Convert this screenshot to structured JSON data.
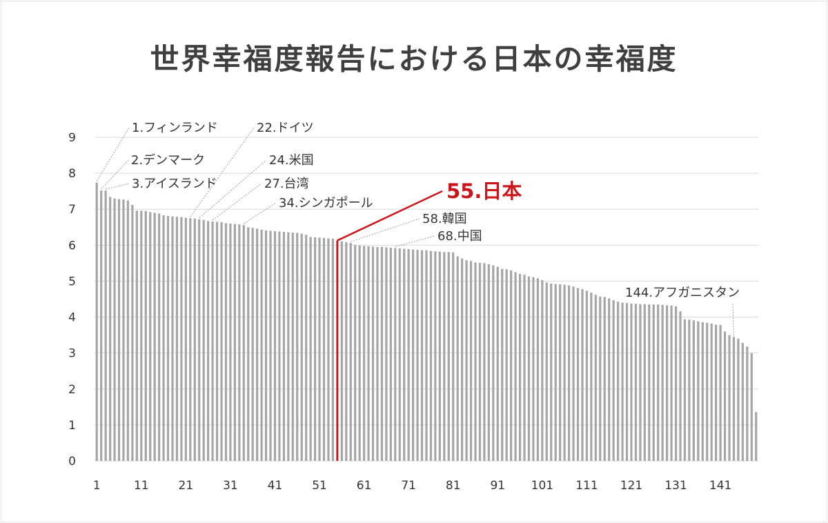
{
  "title": "世界幸福度報告における日本の幸福度",
  "chart_data": {
    "type": "bar",
    "title": "世界幸福度報告における日本の幸福度",
    "xlabel": "",
    "ylabel": "",
    "ylim": [
      0,
      9
    ],
    "yticks": [
      "0",
      "1",
      "2",
      "3",
      "4",
      "5",
      "6",
      "7",
      "8",
      "9"
    ],
    "xticks": [
      "1",
      "11",
      "21",
      "31",
      "41",
      "51",
      "61",
      "71",
      "81",
      "91",
      "101",
      "111",
      "121",
      "131",
      "141"
    ],
    "grid": true,
    "bar_color": "#a6a6a6",
    "highlight_color": "#c8161d",
    "highlight_rank": 55,
    "values": [
      7.74,
      7.52,
      7.52,
      7.34,
      7.3,
      7.28,
      7.27,
      7.24,
      7.12,
      6.96,
      6.96,
      6.95,
      6.92,
      6.9,
      6.88,
      6.83,
      6.81,
      6.8,
      6.79,
      6.78,
      6.76,
      6.75,
      6.74,
      6.72,
      6.7,
      6.67,
      6.66,
      6.65,
      6.64,
      6.61,
      6.6,
      6.59,
      6.58,
      6.56,
      6.5,
      6.48,
      6.46,
      6.43,
      6.41,
      6.4,
      6.39,
      6.38,
      6.37,
      6.36,
      6.35,
      6.34,
      6.32,
      6.29,
      6.23,
      6.22,
      6.21,
      6.2,
      6.19,
      6.18,
      6.13,
      6.11,
      6.08,
      6.06,
      6.01,
      5.99,
      5.98,
      5.97,
      5.96,
      5.95,
      5.95,
      5.94,
      5.93,
      5.92,
      5.91,
      5.9,
      5.89,
      5.88,
      5.87,
      5.86,
      5.86,
      5.84,
      5.83,
      5.82,
      5.81,
      5.81,
      5.8,
      5.69,
      5.63,
      5.58,
      5.56,
      5.52,
      5.51,
      5.5,
      5.47,
      5.44,
      5.4,
      5.34,
      5.33,
      5.3,
      5.25,
      5.2,
      5.18,
      5.13,
      5.11,
      5.08,
      5.03,
      4.96,
      4.93,
      4.92,
      4.91,
      4.9,
      4.88,
      4.85,
      4.81,
      4.78,
      4.73,
      4.68,
      4.62,
      4.57,
      4.56,
      4.52,
      4.47,
      4.43,
      4.4,
      4.39,
      4.38,
      4.37,
      4.36,
      4.36,
      4.35,
      4.35,
      4.35,
      4.34,
      4.33,
      4.32,
      4.3,
      4.16,
      3.94,
      3.93,
      3.91,
      3.88,
      3.86,
      3.84,
      3.82,
      3.79,
      3.78,
      3.6,
      3.5,
      3.45,
      3.4,
      3.28,
      3.18,
      3.0,
      1.36
    ],
    "annotations": [
      {
        "rank": 1,
        "text": "1.フィンランド"
      },
      {
        "rank": 2,
        "text": "2.デンマーク"
      },
      {
        "rank": 3,
        "text": "3.アイスランド"
      },
      {
        "rank": 22,
        "text": "22.ドイツ"
      },
      {
        "rank": 24,
        "text": "24.米国"
      },
      {
        "rank": 27,
        "text": "27.台湾"
      },
      {
        "rank": 34,
        "text": "34.シンガポール"
      },
      {
        "rank": 55,
        "text": "55.日本",
        "highlight": true
      },
      {
        "rank": 58,
        "text": "58.韓国"
      },
      {
        "rank": 68,
        "text": "68.中国"
      },
      {
        "rank": 144,
        "text": "144.アフガニスタン"
      }
    ]
  }
}
